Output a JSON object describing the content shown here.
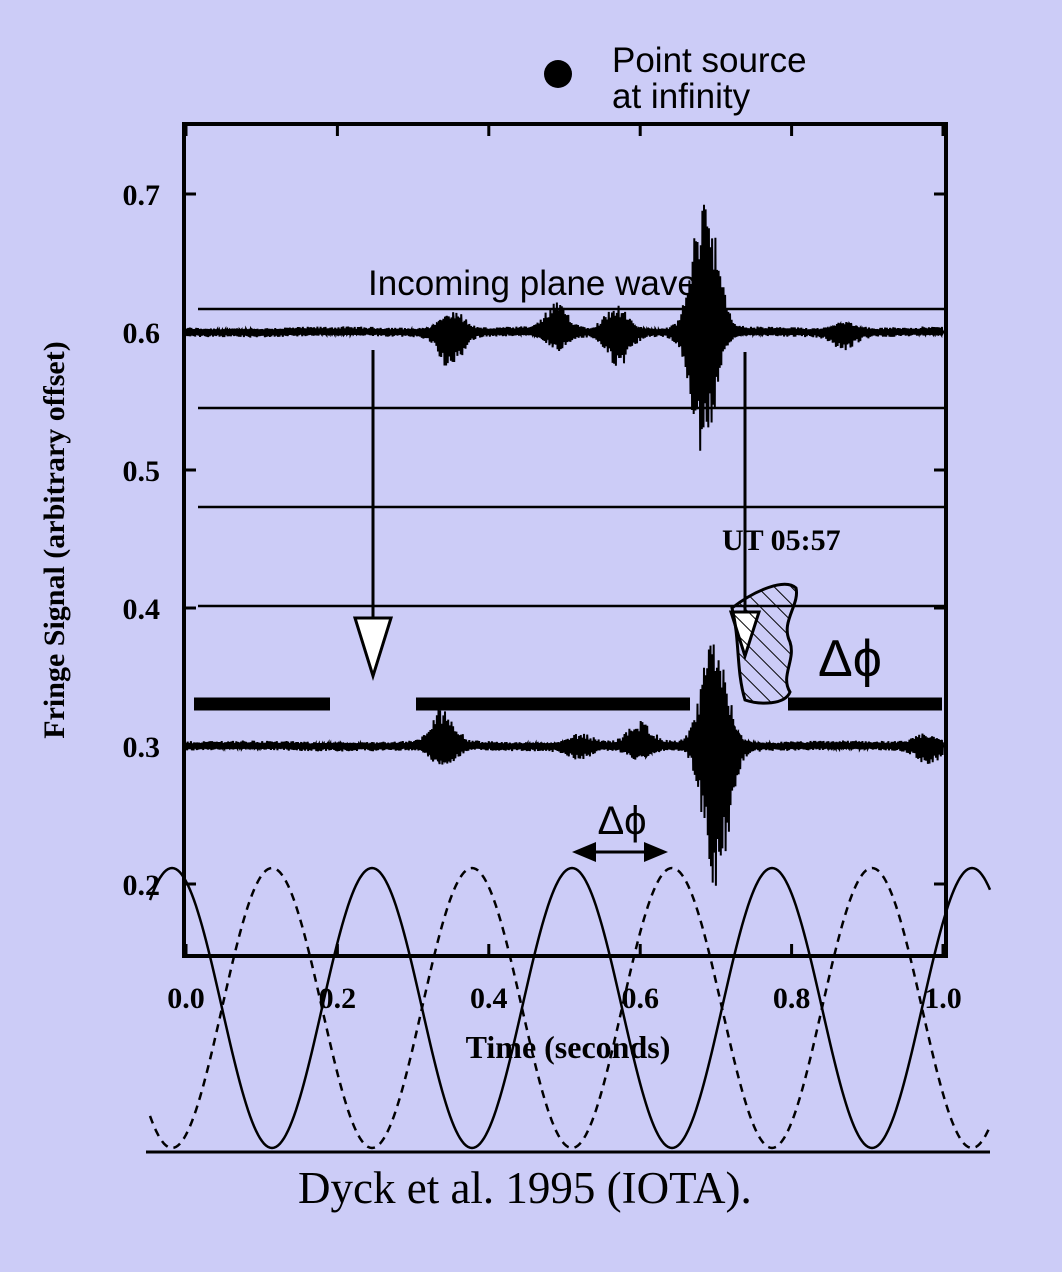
{
  "chart_data": {
    "type": "line",
    "xlabel": "Time (seconds)",
    "ylabel": "Fringe Signal (arbitrary offset)",
    "xlim": [
      0.0,
      1.0
    ],
    "ylim": [
      0.15,
      0.75
    ],
    "x_ticks": [
      0.0,
      0.2,
      0.4,
      0.6,
      0.8,
      1.0
    ],
    "x_tick_labels": [
      "0.0",
      "0.2",
      "0.4",
      "0.6",
      "0.8",
      "1.0"
    ],
    "y_ticks": [
      0.2,
      0.3,
      0.4,
      0.5,
      0.6,
      0.7
    ],
    "y_tick_labels": [
      "0.2",
      "0.3",
      "0.4",
      "0.5",
      "0.6",
      "0.7"
    ],
    "grid": false,
    "series": [
      {
        "baseline": 0.6,
        "x_range": [
          0.0,
          1.0
        ],
        "noise_amplitude": 0.004,
        "bursts": [
          {
            "center": 0.35,
            "amplitude": 0.025
          },
          {
            "center": 0.49,
            "amplitude": 0.018
          },
          {
            "center": 0.57,
            "amplitude": 0.025
          },
          {
            "center": 0.685,
            "amplitude": 0.11
          },
          {
            "center": 0.87,
            "amplitude": 0.01
          }
        ]
      },
      {
        "baseline": 0.3,
        "x_range": [
          0.0,
          1.0
        ],
        "noise_amplitude": 0.004,
        "bursts": [
          {
            "center": 0.34,
            "amplitude": 0.025
          },
          {
            "center": 0.52,
            "amplitude": 0.008
          },
          {
            "center": 0.6,
            "amplitude": 0.015
          },
          {
            "center": 0.7,
            "amplitude": 0.11
          },
          {
            "center": 0.98,
            "amplitude": 0.01
          }
        ]
      }
    ]
  },
  "annotations": {
    "point_source_line1": "Point source",
    "point_source_line2": "at infinity",
    "plane_waves": "Incoming plane waves",
    "ut_time": "UT 05:57",
    "delta_phi_large": "Δϕ",
    "delta_phi_small": "Δϕ",
    "caption": "Dyck et al. 1995 (IOTA)."
  },
  "overlay": {
    "wavefront_lines": 4,
    "reference_wave": {
      "type": "cosine",
      "cycles": 4.2,
      "phase_shift_fraction": 0.5
    },
    "colors": {
      "background": "#ccccf7",
      "ink": "#000000"
    }
  }
}
